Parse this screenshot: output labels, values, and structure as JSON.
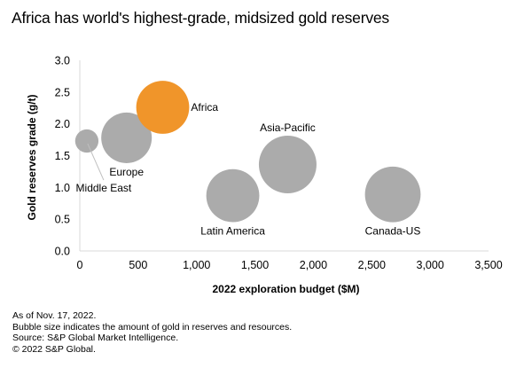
{
  "title": "Africa has world's highest-grade, midsized gold reserves",
  "chart_data": {
    "type": "scatter",
    "subtype": "bubble",
    "title": "Africa has world's highest-grade, midsized gold reserves",
    "xlabel": "2022 exploration budget ($M)",
    "ylabel": "Gold reserves grade (g/t)",
    "xlim": [
      0,
      3500
    ],
    "ylim": [
      0,
      3.0
    ],
    "xticks": [
      0,
      500,
      1000,
      1500,
      2000,
      2500,
      3000,
      3500
    ],
    "xtick_labels": [
      "0",
      "500",
      "1,000",
      "1,500",
      "2,000",
      "2,500",
      "3,000",
      "3,500"
    ],
    "yticks": [
      0,
      0.5,
      1.0,
      1.5,
      2.0,
      2.5,
      3.0
    ],
    "ytick_labels": [
      "0.0",
      "0.5",
      "1.0",
      "1.5",
      "2.0",
      "2.5",
      "3.0"
    ],
    "grid": false,
    "size_meaning": "amount of gold in reserves and resources (relative)",
    "points": [
      {
        "name": "Middle East",
        "x": 60,
        "y": 1.73,
        "size": 0.17,
        "color": "#ababab",
        "label_pos": "bottom-right-leader"
      },
      {
        "name": "Europe",
        "x": 400,
        "y": 1.78,
        "size": 0.8,
        "color": "#ababab",
        "label_pos": "bottom"
      },
      {
        "name": "Africa",
        "x": 710,
        "y": 2.26,
        "size": 0.88,
        "color": "#f0952a",
        "label_pos": "right"
      },
      {
        "name": "Latin America",
        "x": 1310,
        "y": 0.87,
        "size": 0.88,
        "color": "#ababab",
        "label_pos": "bottom"
      },
      {
        "name": "Asia-Pacific",
        "x": 1780,
        "y": 1.36,
        "size": 1.04,
        "color": "#ababab",
        "label_pos": "top"
      },
      {
        "name": "Canada-US",
        "x": 2680,
        "y": 0.89,
        "size": 0.97,
        "color": "#ababab",
        "label_pos": "bottom"
      }
    ]
  },
  "notes": [
    "As of Nov. 17, 2022.",
    "Bubble size indicates the amount of gold in reserves and resources.",
    "Source: S&P Global Market Intelligence.",
    "© 2022 S&P Global."
  ],
  "colors": {
    "highlight": "#f0952a",
    "bubble": "#ababab",
    "axis": "#d9d9d9"
  }
}
